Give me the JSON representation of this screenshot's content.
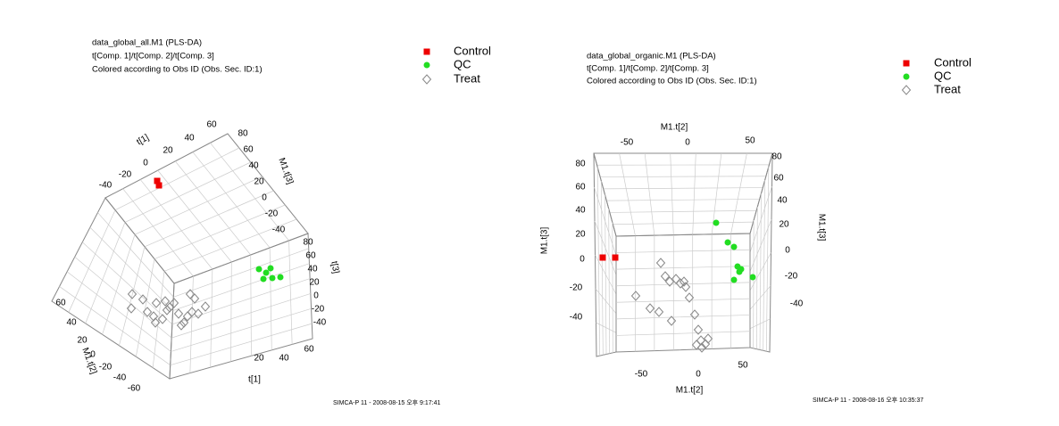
{
  "panels": [
    {
      "header": [
        "data_global_all.M1 (PLS-DA)",
        "t[Comp. 1]/t[Comp. 2]/t[Comp. 3]",
        "Colored according to Obs ID (Obs. Sec. ID:1)"
      ],
      "legend": [
        "Control",
        "QC",
        "Treat"
      ],
      "axes": [
        {
          "label": "t[1]",
          "ticks": [
            "-40",
            "-20",
            "0",
            "20",
            "40",
            "60"
          ]
        },
        {
          "label": "M1.t[3]",
          "ticks": [
            "80",
            "60",
            "40",
            "20",
            "0",
            "-20",
            "-40"
          ]
        },
        {
          "label": "t[3]",
          "ticks": [
            "80",
            "60",
            "40",
            "20",
            "0",
            "-20",
            "-40"
          ]
        },
        {
          "label": "t[1]",
          "ticks": [
            "20",
            "40",
            "60"
          ]
        },
        {
          "label": "M1.t[2]",
          "ticks": [
            "60",
            "40",
            "20",
            "0",
            "-20",
            "-40",
            "-60"
          ]
        }
      ],
      "footer": "SIMCA-P 11 - 2008-08-15 오후 9:17:41"
    },
    {
      "header": [
        "data_global_organic.M1 (PLS-DA)",
        "t[Comp. 1]/t[Comp. 2]/t[Comp. 3]",
        "Colored according to Obs ID (Obs. Sec. ID:1)"
      ],
      "legend": [
        "Control",
        "QC",
        "Treat"
      ],
      "axes": [
        {
          "label": "M1.t[2]",
          "ticks": [
            "-50",
            "0",
            "50"
          ]
        },
        {
          "label": "M1.t[3]",
          "ticks": [
            "80",
            "60",
            "40",
            "20",
            "0",
            "-20",
            "-40"
          ]
        },
        {
          "label": "M1.t[3]",
          "ticks": [
            "80",
            "60",
            "40",
            "20",
            "0",
            "-20",
            "-40"
          ]
        },
        {
          "label": "M1.t[2]",
          "ticks": [
            "-50",
            "0",
            "50"
          ]
        }
      ],
      "footer": "SIMCA-P 11 - 2008-08-16 오후 10:35:37"
    }
  ]
}
